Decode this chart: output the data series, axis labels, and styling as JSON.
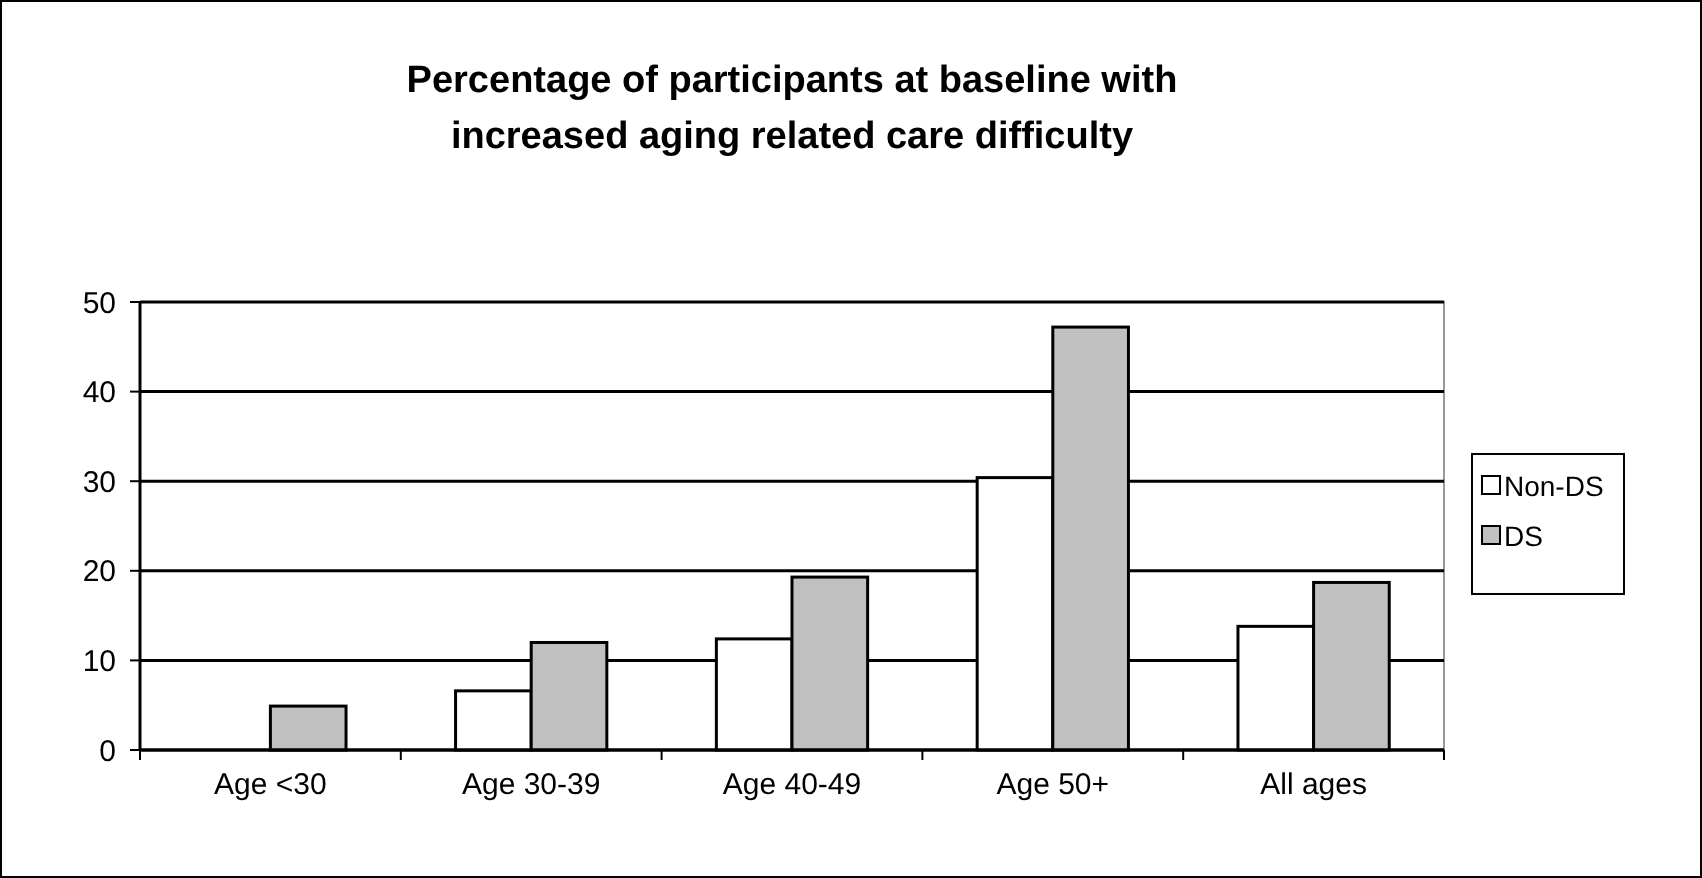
{
  "chart_data": {
    "type": "bar",
    "title": "Percentage of participants at baseline with increased aging related care difficulty",
    "categories": [
      "Age <30",
      "Age 30-39",
      "Age 40-49",
      "Age 50+",
      "All ages"
    ],
    "series": [
      {
        "name": "Non-DS",
        "color": "#ffffff",
        "values": [
          0,
          6.6,
          12.4,
          30.4,
          13.8
        ]
      },
      {
        "name": "DS",
        "color": "#c0c0c0",
        "values": [
          4.9,
          12,
          19.3,
          47.2,
          18.7
        ]
      }
    ],
    "ylim": [
      0,
      50
    ],
    "yticks": [
      0,
      10,
      20,
      30,
      40,
      50
    ],
    "grid": "y",
    "legend": "right"
  }
}
